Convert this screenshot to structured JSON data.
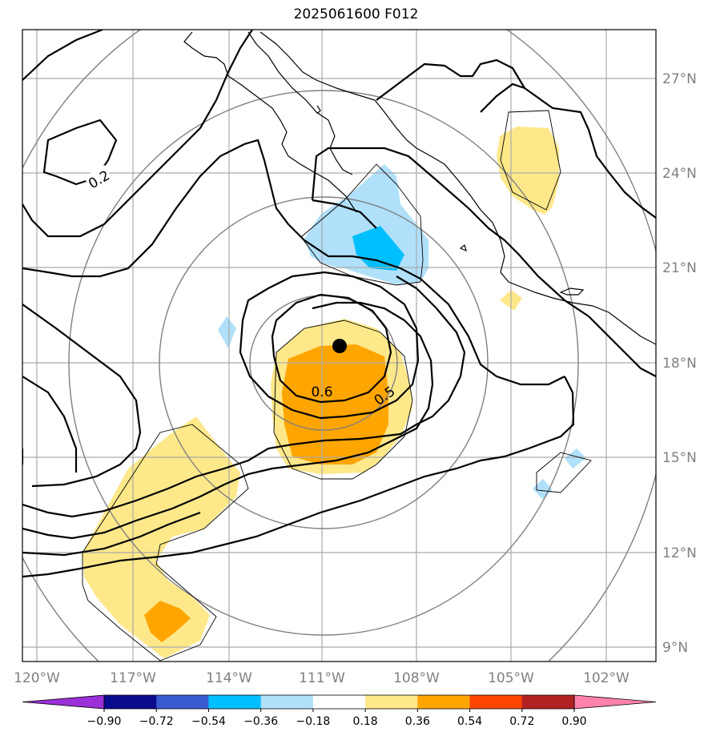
{
  "title": "2025061600 F012",
  "map": {
    "lon_labels": [
      "120°W",
      "117°W",
      "114°W",
      "111°W",
      "108°W",
      "105°W",
      "102°W"
    ],
    "lat_labels": [
      "27°N",
      "24°N",
      "21°N",
      "18°N",
      "15°N",
      "12°N",
      "9°N"
    ],
    "contour_labels": [
      "0.2",
      "0.6",
      "0.5"
    ],
    "storm_center": "black-dot"
  },
  "colorbar": {
    "ticks": [
      "−0.90",
      "−0.72",
      "−0.54",
      "−0.36",
      "−0.18",
      "0.18",
      "0.36",
      "0.54",
      "0.72",
      "0.90"
    ],
    "colors": [
      "#9b30d9",
      "#0b0b8f",
      "#3a5bcf",
      "#00bfff",
      "#b0e0fa",
      "#ffffff",
      "#ffe88a",
      "#ffa500",
      "#ff4500",
      "#b22222",
      "#ff82ab"
    ]
  }
}
